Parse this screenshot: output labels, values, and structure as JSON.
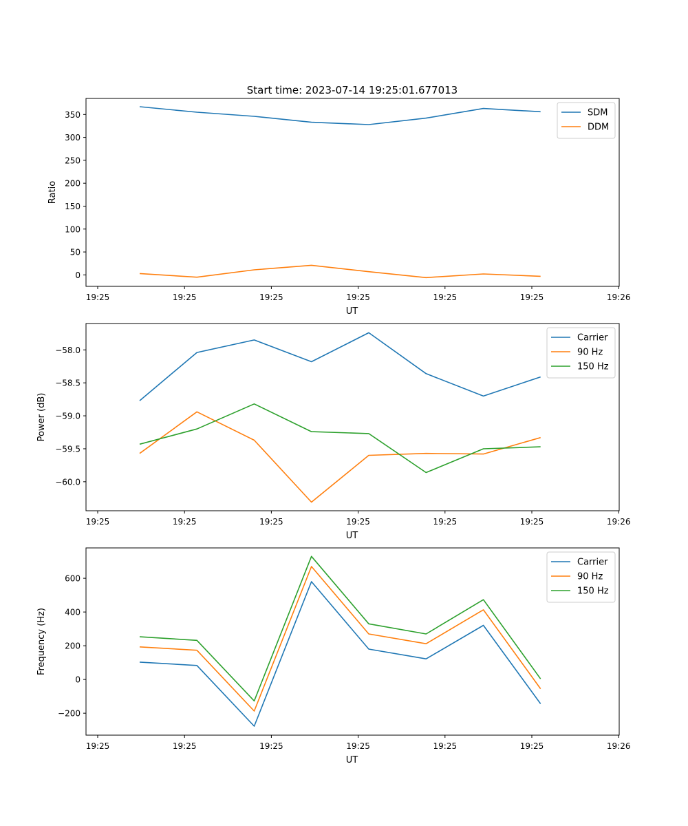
{
  "figure_title": "Start time: 2023-07-14 19:25:01.677013",
  "colors": {
    "blue": "#1f77b4",
    "orange": "#ff7f0e",
    "green": "#2ca02c"
  },
  "chart_data": [
    {
      "type": "line",
      "title": "Start time: 2023-07-14 19:25:01.677013",
      "xlabel": "UT",
      "ylabel": "Ratio",
      "xticks": [
        "19:25",
        "19:25",
        "19:25",
        "19:25",
        "19:25",
        "19:25",
        "19:26"
      ],
      "xlim": [
        0,
        6
      ],
      "ylim": [
        -25,
        385
      ],
      "yticks": [
        0,
        50,
        100,
        150,
        200,
        250,
        300,
        350
      ],
      "ytick_labels": [
        "0",
        "50",
        "100",
        "150",
        "200",
        "250",
        "300",
        "350"
      ],
      "x": [
        0.483,
        1.143,
        1.803,
        2.462,
        3.122,
        3.782,
        4.442,
        5.101
      ],
      "legend_position": "top-right",
      "series": [
        {
          "name": "SDM",
          "color": "#1f77b4",
          "values": [
            367,
            355,
            346,
            333,
            328,
            342,
            363,
            356
          ]
        },
        {
          "name": "DDM",
          "color": "#ff7f0e",
          "values": [
            3,
            -5,
            11,
            21,
            7,
            -6,
            2,
            -3
          ]
        }
      ]
    },
    {
      "type": "line",
      "xlabel": "UT",
      "ylabel": "Power (dB)",
      "xticks": [
        "19:25",
        "19:25",
        "19:25",
        "19:25",
        "19:25",
        "19:25",
        "19:26"
      ],
      "xlim": [
        0,
        6
      ],
      "ylim": [
        -60.44,
        -57.6
      ],
      "yticks": [
        -60.0,
        -59.5,
        -59.0,
        -58.5,
        -58.0
      ],
      "ytick_labels": [
        "−60.0",
        "−59.5",
        "−59.0",
        "−58.5",
        "−58.0"
      ],
      "x": [
        0.483,
        1.143,
        1.803,
        2.462,
        3.122,
        3.782,
        4.442,
        5.101
      ],
      "legend_position": "top-right",
      "series": [
        {
          "name": "Carrier",
          "color": "#1f77b4",
          "values": [
            -58.77,
            -58.04,
            -57.85,
            -58.18,
            -57.74,
            -58.36,
            -58.7,
            -58.41
          ]
        },
        {
          "name": "90 Hz",
          "color": "#ff7f0e",
          "values": [
            -59.57,
            -58.94,
            -59.37,
            -60.31,
            -59.6,
            -59.57,
            -59.58,
            -59.33
          ]
        },
        {
          "name": "150 Hz",
          "color": "#2ca02c",
          "values": [
            -59.43,
            -59.2,
            -58.82,
            -59.24,
            -59.27,
            -59.86,
            -59.5,
            -59.47
          ]
        }
      ]
    },
    {
      "type": "line",
      "xlabel": "UT",
      "ylabel": "Frequency (Hz)",
      "xticks": [
        "19:25",
        "19:25",
        "19:25",
        "19:25",
        "19:25",
        "19:25",
        "19:26"
      ],
      "xlim": [
        0,
        6
      ],
      "ylim": [
        -330,
        780
      ],
      "yticks": [
        -200,
        0,
        200,
        400,
        600
      ],
      "ytick_labels": [
        "−200",
        "0",
        "200",
        "400",
        "600"
      ],
      "x": [
        0.483,
        1.143,
        1.803,
        2.462,
        3.122,
        3.782,
        4.442,
        5.101
      ],
      "legend_position": "top-right",
      "series": [
        {
          "name": "Carrier",
          "color": "#1f77b4",
          "values": [
            103,
            83,
            -277,
            580,
            180,
            122,
            321,
            -144
          ]
        },
        {
          "name": "90 Hz",
          "color": "#ff7f0e",
          "values": [
            193,
            173,
            -187,
            670,
            270,
            212,
            413,
            -55
          ]
        },
        {
          "name": "150 Hz",
          "color": "#2ca02c",
          "values": [
            253,
            232,
            -127,
            730,
            330,
            270,
            473,
            4
          ]
        }
      ]
    }
  ]
}
